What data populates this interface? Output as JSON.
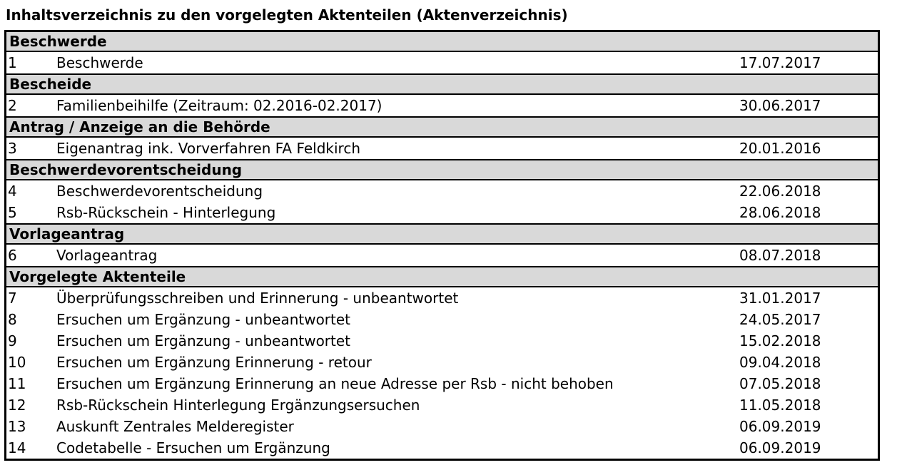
{
  "page": {
    "title": "Inhaltsverzeichnis zu den vorgelegten Aktenteilen (Aktenverzeichnis)"
  },
  "colors": {
    "header_bg": "#d9d9d9",
    "border": "#000000",
    "text": "#000000",
    "background": "#ffffff"
  },
  "table": {
    "sections": [
      {
        "header": "Beschwerde",
        "items": [
          {
            "num": "1",
            "text": "Beschwerde",
            "date": "17.07.2017"
          }
        ]
      },
      {
        "header": "Bescheide",
        "items": [
          {
            "num": "2",
            "text": "Familienbeihilfe (Zeitraum: 02.2016-02.2017)",
            "date": "30.06.2017"
          }
        ]
      },
      {
        "header": "Antrag / Anzeige an die Behörde",
        "items": [
          {
            "num": "3",
            "text": "Eigenantrag ink. Vorverfahren FA Feldkirch",
            "date": "20.01.2016"
          }
        ]
      },
      {
        "header": "Beschwerdevorentscheidung",
        "items": [
          {
            "num": "4",
            "text": "Beschwerdevorentscheidung",
            "date": "22.06.2018"
          },
          {
            "num": "5",
            "text": "Rsb-Rückschein - Hinterlegung",
            "date": "28.06.2018"
          }
        ]
      },
      {
        "header": "Vorlageantrag",
        "items": [
          {
            "num": "6",
            "text": "Vorlageantrag",
            "date": "08.07.2018"
          }
        ]
      },
      {
        "header": "Vorgelegte Aktenteile",
        "items": [
          {
            "num": "7",
            "text": "Überprüfungsschreiben und Erinnerung - unbeantwortet",
            "date": "31.01.2017"
          },
          {
            "num": "8",
            "text": "Ersuchen um Ergänzung - unbeantwortet",
            "date": "24.05.2017"
          },
          {
            "num": "9",
            "text": "Ersuchen um Ergänzung - unbeantwortet",
            "date": "15.02.2018"
          },
          {
            "num": "10",
            "text": "Ersuchen um Ergänzung Erinnerung - retour",
            "date": "09.04.2018"
          },
          {
            "num": "11",
            "text": "Ersuchen um Ergänzung Erinnerung an neue Adresse per Rsb - nicht behoben",
            "date": "07.05.2018"
          },
          {
            "num": "12",
            "text": "Rsb-Rückschein Hinterlegung Ergänzungsersuchen",
            "date": "11.05.2018"
          },
          {
            "num": "13",
            "text": "Auskunft Zentrales Melderegister",
            "date": "06.09.2019"
          },
          {
            "num": "14",
            "text": "Codetabelle - Ersuchen um Ergänzung",
            "date": "06.09.2019"
          }
        ]
      }
    ]
  }
}
